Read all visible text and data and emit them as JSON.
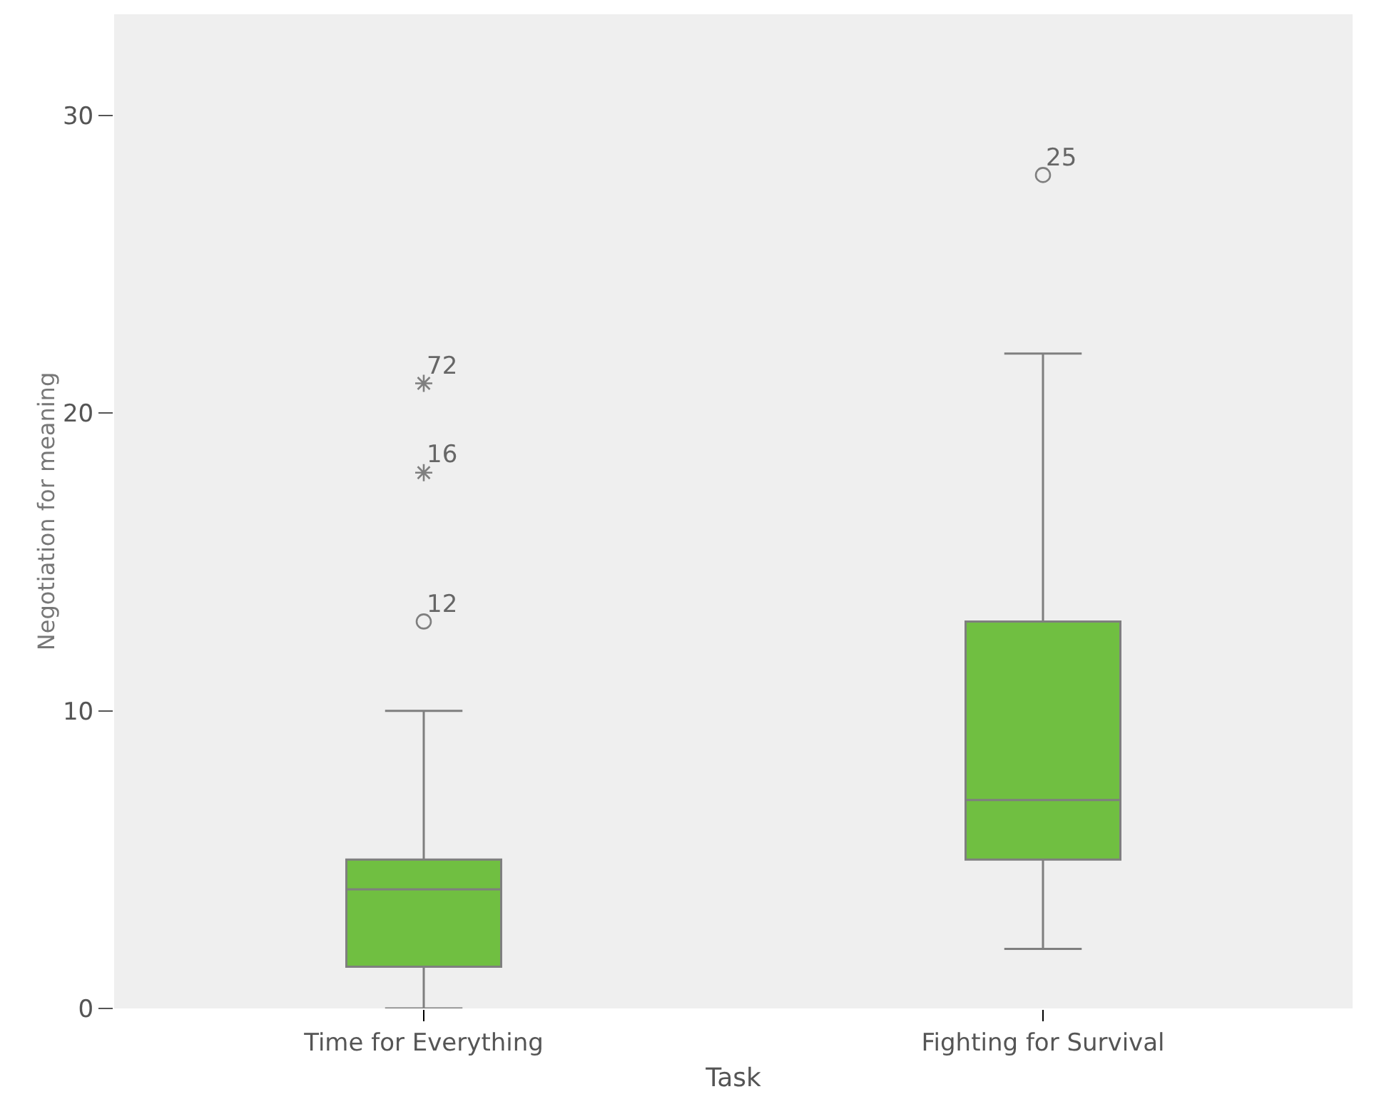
{
  "chart_data": {
    "type": "box",
    "xlabel": "Task",
    "ylabel": "Negotiation for meaning",
    "categories": [
      "Time for Everything",
      "Fighting for Survival"
    ],
    "color": "#70bf41",
    "boxes": [
      {
        "low": 0,
        "q1": 1.4,
        "median": 4,
        "q3": 5,
        "high": 10
      },
      {
        "low": 2,
        "q1": 5,
        "median": 7,
        "q3": 13,
        "high": 22
      }
    ],
    "series": [
      {
        "type": "scatter",
        "marker": "circle",
        "x": [
          "Time for Everything",
          "Fighting for Survival"
        ],
        "values": [
          13,
          28
        ],
        "color": "#7f7f7f"
      },
      {
        "type": "scatter",
        "marker": "cross",
        "x": [
          "Time for Everything",
          "Time for Everything"
        ],
        "values": [
          18,
          21
        ],
        "color": "#7f7f7f"
      }
    ],
    "annotations": [
      {
        "text": "72",
        "x": "Time for Everything",
        "y": 21
      },
      {
        "text": "16",
        "x": "Time for Everything",
        "y": 18
      },
      {
        "text": "12",
        "x": "Time for Everything",
        "y": 13
      },
      {
        "text": "25",
        "x": "Fighting for Survival",
        "y": 28
      }
    ],
    "ylim": [
      0,
      33.4
    ],
    "yticks": [
      0,
      10,
      20,
      30
    ]
  }
}
